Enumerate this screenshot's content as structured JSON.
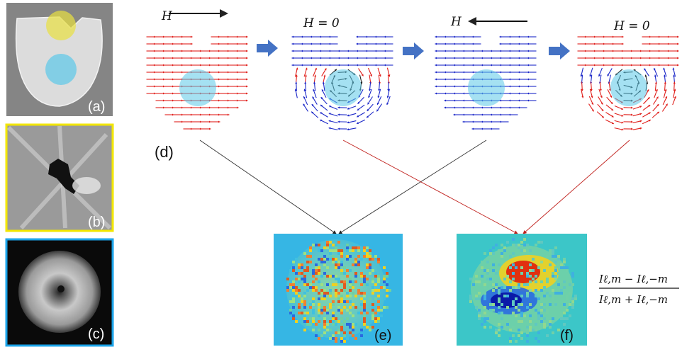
{
  "panels": {
    "a": "(a)",
    "b": "(b)",
    "c": "(c)",
    "d": "(d)",
    "e": "(e)",
    "f": "(f)"
  },
  "field_labels": {
    "stage1": "H",
    "stage2": "H = 0",
    "stage3": "H",
    "stage4": "H = 0"
  },
  "formula": {
    "numerator": "Iℓ,m − Iℓ,−m",
    "denominator": "Iℓ,m + Iℓ,−m"
  },
  "colors": {
    "arrow_red": "#e0201c",
    "arrow_blue": "#1c28c8",
    "arrow_dark": "#222222",
    "step_arrow": "#4472c4",
    "highlight_cyan": "#5bc8e8",
    "highlight_yellow": "#e8e040",
    "frame_yellow": "#f2e600",
    "frame_blue": "#1aa3e8"
  }
}
